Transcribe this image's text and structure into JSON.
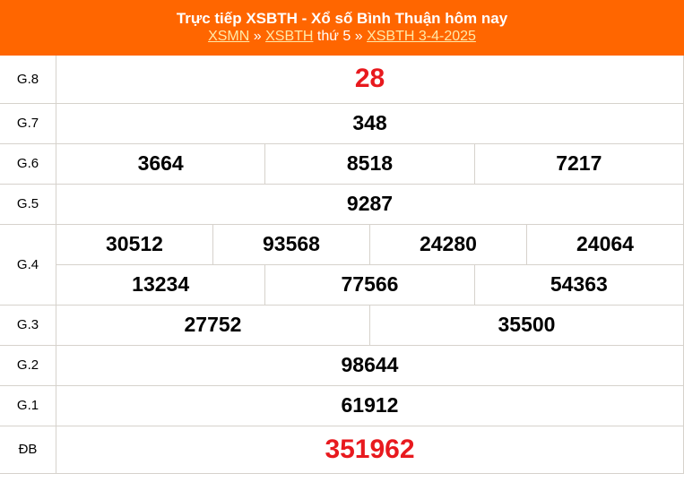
{
  "header": {
    "title": "Trực tiếp XSBTH - Xổ số Bình Thuận hôm nay",
    "breadcrumb": {
      "link1": "XSMN",
      "sep1": " » ",
      "link2": "XSBTH",
      "day": " thứ 5 » ",
      "link3": "XSBTH 3-4-2025"
    }
  },
  "colors": {
    "header_bg": "#ff6600",
    "highlight": "#e8191e"
  },
  "prizes": {
    "g8": {
      "label": "G.8",
      "numbers": [
        "28"
      ]
    },
    "g7": {
      "label": "G.7",
      "numbers": [
        "348"
      ]
    },
    "g6": {
      "label": "G.6",
      "numbers": [
        "3664",
        "8518",
        "7217"
      ]
    },
    "g5": {
      "label": "G.5",
      "numbers": [
        "9287"
      ]
    },
    "g4": {
      "label": "G.4",
      "numbers": [
        "30512",
        "93568",
        "24280",
        "24064",
        "13234",
        "77566",
        "54363"
      ]
    },
    "g3": {
      "label": "G.3",
      "numbers": [
        "27752",
        "35500"
      ]
    },
    "g2": {
      "label": "G.2",
      "numbers": [
        "98644"
      ]
    },
    "g1": {
      "label": "G.1",
      "numbers": [
        "61912"
      ]
    },
    "db": {
      "label": "ĐB",
      "numbers": [
        "351962"
      ]
    }
  }
}
